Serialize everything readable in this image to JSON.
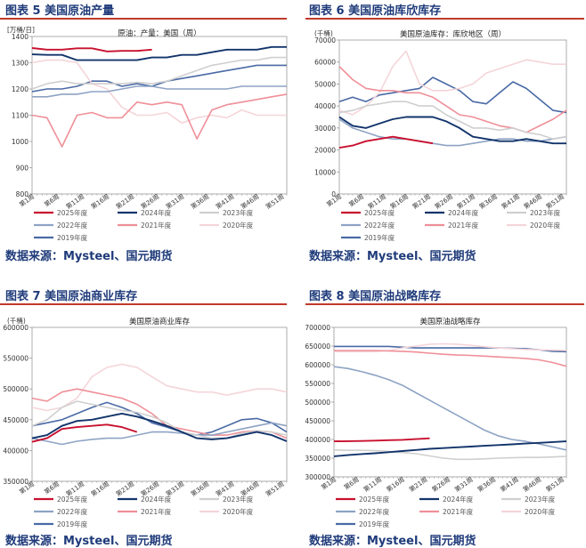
{
  "legend_colors": {
    "2025年度": "#c8102e",
    "2024年度": "#12346b",
    "2023年度": "#cfcfcf",
    "2022年度": "#8ea3c4",
    "2021年度": "#ef8f98",
    "2020年度": "#f4d5d9",
    "2019年度": "#4a6aa5"
  },
  "panels": [
    {
      "fig_title": "图表 5 美国原油产量",
      "source": "数据来源：Mysteel、国元期货",
      "chart_data": {
        "type": "line",
        "title": "原油：产量：美国（周）",
        "ylabel": "[万桶/日]",
        "ylim": [
          800,
          1400
        ],
        "yticks": [
          "800",
          "900",
          "1000",
          "1100",
          "1200",
          "1300",
          "1400"
        ],
        "xticks": [
          "第1周",
          "第6周",
          "第11周",
          "第16周",
          "第21周",
          "第26周",
          "第31周",
          "第36周",
          "第41周",
          "第46周",
          "第51周"
        ],
        "x": [
          1,
          4,
          7,
          10,
          13,
          16,
          19,
          22,
          25,
          28,
          31,
          34,
          37,
          40,
          43,
          46,
          49,
          52
        ],
        "series": [
          {
            "name": "2025年度",
            "values": [
              1356,
              1350,
              1350,
              1355,
              1355,
              1343,
              1345,
              1345,
              1350,
              null,
              null,
              null,
              null,
              null,
              null,
              null,
              null,
              null
            ]
          },
          {
            "name": "2024年度",
            "values": [
              1332,
              1330,
              1330,
              1310,
              1310,
              1310,
              1310,
              1310,
              1320,
              1320,
              1330,
              1330,
              1340,
              1350,
              1350,
              1350,
              1360,
              1360
            ]
          },
          {
            "name": "2023年度",
            "values": [
              1200,
              1220,
              1230,
              1220,
              1220,
              1220,
              1220,
              1225,
              1220,
              1230,
              1250,
              1270,
              1290,
              1300,
              1310,
              1310,
              1320,
              1320
            ]
          },
          {
            "name": "2022年度",
            "values": [
              1170,
              1170,
              1180,
              1180,
              1190,
              1190,
              1200,
              1210,
              1210,
              1200,
              1200,
              1200,
              1200,
              1200,
              1210,
              1210,
              1210,
              1210
            ]
          },
          {
            "name": "2021年度",
            "values": [
              1100,
              1090,
              980,
              1100,
              1110,
              1090,
              1090,
              1150,
              1140,
              1150,
              1140,
              1010,
              1120,
              1140,
              1150,
              1160,
              1170,
              1180
            ]
          },
          {
            "name": "2020年度",
            "values": [
              1300,
              1310,
              1310,
              1300,
              1220,
              1200,
              1130,
              1100,
              1100,
              1110,
              1070,
              1090,
              1100,
              1090,
              1120,
              1100,
              1100,
              1100
            ]
          },
          {
            "name": "2019年度",
            "values": [
              1190,
              1200,
              1200,
              1210,
              1230,
              1230,
              1210,
              1220,
              1210,
              1230,
              1240,
              1250,
              1260,
              1270,
              1280,
              1290,
              1290,
              1290
            ]
          }
        ]
      }
    },
    {
      "fig_title": "图表 6 美国原油库欣库存",
      "source": "数据来源：Mysteel、国元期货",
      "chart_data": {
        "type": "line",
        "title": "美国原油库存：库欣地区（周）",
        "ylabel": "(千桶)",
        "ylim": [
          0,
          70000
        ],
        "yticks": [
          "0",
          "10000",
          "20000",
          "30000",
          "40000",
          "50000",
          "60000",
          "70000"
        ],
        "xticks": [
          "第1周",
          "第6周",
          "第11周",
          "第16周",
          "第21周",
          "第26周",
          "第31周",
          "第36周",
          "第41周",
          "第46周",
          "第51周"
        ],
        "x": [
          1,
          4,
          7,
          10,
          13,
          16,
          19,
          22,
          25,
          28,
          31,
          34,
          37,
          40,
          43,
          46,
          49,
          52
        ],
        "series": [
          {
            "name": "2025年度",
            "values": [
              21000,
              22000,
              24000,
              25000,
              26000,
              25000,
              24000,
              23000,
              null,
              null,
              null,
              null,
              null,
              null,
              null,
              null,
              null,
              null
            ]
          },
          {
            "name": "2024年度",
            "values": [
              35000,
              31000,
              30000,
              32000,
              34000,
              35000,
              35000,
              35000,
              33000,
              30000,
              26000,
              25000,
              24000,
              24000,
              25000,
              24000,
              23000,
              23000
            ]
          },
          {
            "name": "2023年度",
            "values": [
              37000,
              38000,
              40000,
              41000,
              42000,
              42000,
              40000,
              40000,
              36000,
              33000,
              30000,
              30000,
              29000,
              30000,
              28000,
              27000,
              25000,
              26000
            ]
          },
          {
            "name": "2022年度",
            "values": [
              34000,
              30000,
              28000,
              26000,
              25000,
              25000,
              24000,
              23000,
              22000,
              22000,
              23000,
              24000,
              25000,
              25000,
              24000,
              24000,
              25000,
              26000
            ]
          },
          {
            "name": "2021年度",
            "values": [
              58000,
              52000,
              48000,
              47000,
              47000,
              46000,
              46000,
              44000,
              40000,
              36000,
              35000,
              33000,
              31000,
              30000,
              28000,
              31000,
              34000,
              38000
            ]
          },
          {
            "name": "2020年度",
            "values": [
              38000,
              36000,
              40000,
              46000,
              58000,
              65000,
              50000,
              47000,
              47000,
              48000,
              50000,
              55000,
              57000,
              59000,
              61000,
              60000,
              59000,
              59000
            ]
          },
          {
            "name": "2019年度",
            "values": [
              42000,
              44000,
              42000,
              45000,
              46000,
              47000,
              48000,
              53000,
              50000,
              47000,
              42000,
              41000,
              46000,
              51000,
              48000,
              43000,
              38000,
              37000
            ]
          }
        ]
      }
    },
    {
      "fig_title": "图表 7 美国原油商业库存",
      "source": "数据来源：Mysteel、国元期货",
      "chart_data": {
        "type": "line",
        "title": "美国原油商业库存",
        "ylabel": "(千桶)",
        "ylim": [
          350000,
          600000
        ],
        "yticks": [
          "350000",
          "400000",
          "450000",
          "500000",
          "550000",
          "600000"
        ],
        "xticks": [
          "第1周",
          "第6周",
          "第11周",
          "第16周",
          "第21周",
          "第26周",
          "第31周",
          "第36周",
          "第41周",
          "第46周",
          "第51周"
        ],
        "x": [
          1,
          4,
          7,
          10,
          13,
          16,
          19,
          22,
          25,
          28,
          31,
          34,
          37,
          40,
          43,
          46,
          49,
          52
        ],
        "series": [
          {
            "name": "2025年度",
            "values": [
              414000,
              420000,
              435000,
              438000,
              440000,
              442000,
              438000,
              430000,
              null,
              null,
              null,
              null,
              null,
              null,
              null,
              null,
              null,
              null
            ]
          },
          {
            "name": "2024年度",
            "values": [
              420000,
              425000,
              440000,
              448000,
              450000,
              455000,
              460000,
              455000,
              448000,
              440000,
              430000,
              420000,
              418000,
              420000,
              425000,
              430000,
              425000,
              415000
            ]
          },
          {
            "name": "2023年度",
            "values": [
              440000,
              450000,
              470000,
              480000,
              475000,
              470000,
              465000,
              462000,
              455000,
              445000,
              430000,
              425000,
              420000,
              420000,
              428000,
              432000,
              430000,
              425000
            ]
          },
          {
            "name": "2022年度",
            "values": [
              420000,
              415000,
              410000,
              415000,
              418000,
              420000,
              420000,
              425000,
              430000,
              430000,
              428000,
              425000,
              425000,
              430000,
              435000,
              440000,
              445000,
              440000
            ]
          },
          {
            "name": "2021年度",
            "values": [
              485000,
              480000,
              495000,
              500000,
              495000,
              490000,
              485000,
              475000,
              460000,
              440000,
              435000,
              430000,
              425000,
              425000,
              430000,
              432000,
              430000,
              420000
            ]
          },
          {
            "name": "2020年度",
            "values": [
              470000,
              465000,
              470000,
              485000,
              520000,
              535000,
              540000,
              535000,
              520000,
              505000,
              500000,
              495000,
              495000,
              490000,
              495000,
              500000,
              500000,
              495000
            ]
          },
          {
            "name": "2019年度",
            "values": [
              440000,
              445000,
              450000,
              460000,
              470000,
              478000,
              470000,
              460000,
              445000,
              438000,
              430000,
              425000,
              430000,
              440000,
              450000,
              452000,
              445000,
              430000
            ]
          }
        ]
      }
    },
    {
      "fig_title": "图表 8 美国原油战略库存",
      "source": "数据来源：Mysteel、国元期货",
      "chart_data": {
        "type": "line",
        "title": "美国原油战略库存",
        "ylabel": "",
        "ylim": [
          300000,
          700000
        ],
        "yticks": [
          "300000",
          "350000",
          "400000",
          "450000",
          "500000",
          "550000",
          "600000",
          "650000",
          "700000"
        ],
        "xticks": [
          "第1周",
          "第6周",
          "第11周",
          "第16周",
          "第21周",
          "第26周",
          "第31周",
          "第36周",
          "第41周",
          "第46周",
          "第51周"
        ],
        "x": [
          1,
          4,
          7,
          10,
          13,
          16,
          19,
          22,
          25,
          28,
          31,
          34,
          37,
          40,
          43,
          46,
          49,
          52
        ],
        "series": [
          {
            "name": "2025年度",
            "values": [
              395000,
              395500,
              396000,
              397000,
              398000,
              399000,
              401000,
              403000,
              null,
              null,
              null,
              null,
              null,
              null,
              null,
              null,
              null,
              null
            ]
          },
          {
            "name": "2024年度",
            "values": [
              355000,
              358000,
              361000,
              363000,
              366000,
              369000,
              372000,
              375000,
              377000,
              379000,
              381000,
              383000,
              385000,
              387000,
              389000,
              391000,
              393000,
              395000
            ]
          },
          {
            "name": "2023年度",
            "values": [
              372000,
              371000,
              371000,
              370000,
              368000,
              365000,
              362000,
              356000,
              350000,
              347000,
              347000,
              348000,
              350000,
              351000,
              352000,
              352000,
              353000,
              355000
            ]
          },
          {
            "name": "2022年度",
            "values": [
              595000,
              590000,
              582000,
              572000,
              560000,
              545000,
              525000,
              505000,
              485000,
              465000,
              445000,
              425000,
              410000,
              400000,
              395000,
              388000,
              380000,
              372000
            ]
          },
          {
            "name": "2021年度",
            "values": [
              638000,
              638000,
              638000,
              638000,
              637000,
              636000,
              634000,
              631000,
              628000,
              626000,
              625000,
              623000,
              621000,
              619000,
              617000,
              613000,
              606000,
              596000
            ]
          },
          {
            "name": "2020年度",
            "values": [
              635000,
              635000,
              635000,
              635000,
              638000,
              645000,
              650000,
              655000,
              656000,
              655000,
              652000,
              648000,
              645000,
              643000,
              641000,
              640000,
              639000,
              638000
            ]
          },
          {
            "name": "2019年度",
            "values": [
              649000,
              649000,
              649000,
              649000,
              649000,
              647000,
              645000,
              645000,
              645000,
              645000,
              645000,
              645000,
              645000,
              644000,
              643000,
              640000,
              636000,
              635000
            ]
          }
        ]
      }
    }
  ]
}
